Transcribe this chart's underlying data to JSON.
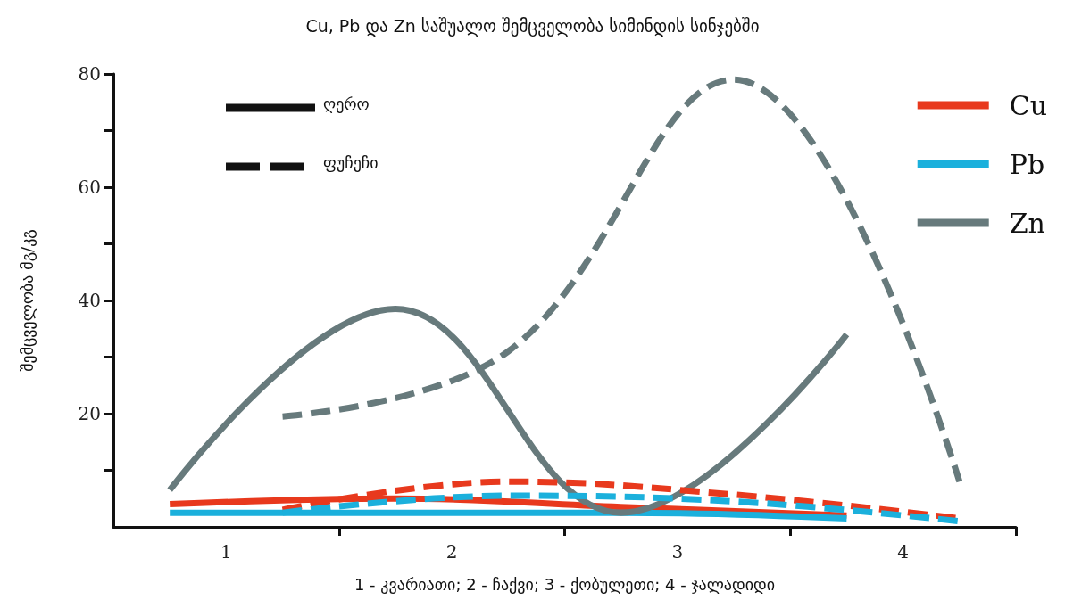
{
  "chart_data": {
    "type": "line",
    "title": "Cu, Pb და Zn საშუალო შემცველობა სიმინდის სინჯებში",
    "xlabel": "1 - კვარიათი; 2 - ჩაქვი; 3 - ქობულეთი; 4 - ჯალადიდი",
    "ylabel": "შემცველობა მგ/კგ",
    "xlim": [
      0.5,
      4.5
    ],
    "xticks": [
      1,
      2,
      3,
      4,
      {
        "value": 1.5,
        "label": null
      },
      {
        "value": 2.5,
        "label": null
      },
      {
        "value": 3.5,
        "label": null
      },
      {
        "value": 4.5,
        "label": null
      }
    ],
    "ylim": [
      0,
      80
    ],
    "yticks": [
      {
        "value": 10,
        "label": null
      },
      20,
      {
        "value": 30,
        "label": null
      },
      40,
      {
        "value": 50,
        "label": null
      },
      60,
      {
        "value": 70,
        "label": null
      },
      80
    ],
    "grid": false,
    "legend": "top right",
    "marker": "none",
    "annotations": [
      "ღერო",
      "ფუჩეჩი"
    ],
    "series": [
      {
        "name": "Cu",
        "color": "#e8391d",
        "line_style": "solid",
        "x": [
          0.75,
          1.75,
          2.75,
          3.75
        ],
        "values": [
          4,
          5,
          3.5,
          2
        ]
      },
      {
        "name": "Pb",
        "color": "#1bb0dc",
        "line_style": "solid",
        "x": [
          0.75,
          1.75,
          2.75,
          3.75
        ],
        "values": [
          2.5,
          2.5,
          2.5,
          1.5
        ]
      },
      {
        "name": "Zn",
        "color": "#677a7c",
        "line_style": "solid",
        "x": [
          0.75,
          1.75,
          2.75,
          3.75
        ],
        "values": [
          6.5,
          38.5,
          2.5,
          34
        ]
      },
      {
        "color": "#e8391d",
        "line_style": "dashed",
        "x": [
          1.25,
          2.25,
          3.25,
          4.25
        ],
        "values": [
          3,
          8,
          5.7,
          1.5
        ]
      },
      {
        "color": "#1bb0dc",
        "line_style": "dashed",
        "x": [
          1.25,
          2.25,
          3.25,
          4.25
        ],
        "values": [
          2.5,
          5.5,
          4.5,
          1
        ]
      },
      {
        "color": "#677a7c",
        "line_style": "dashed",
        "x": [
          1.25,
          2.25,
          3.25,
          4.25
        ],
        "values": [
          19.5,
          31,
          79,
          8
        ]
      }
    ]
  }
}
